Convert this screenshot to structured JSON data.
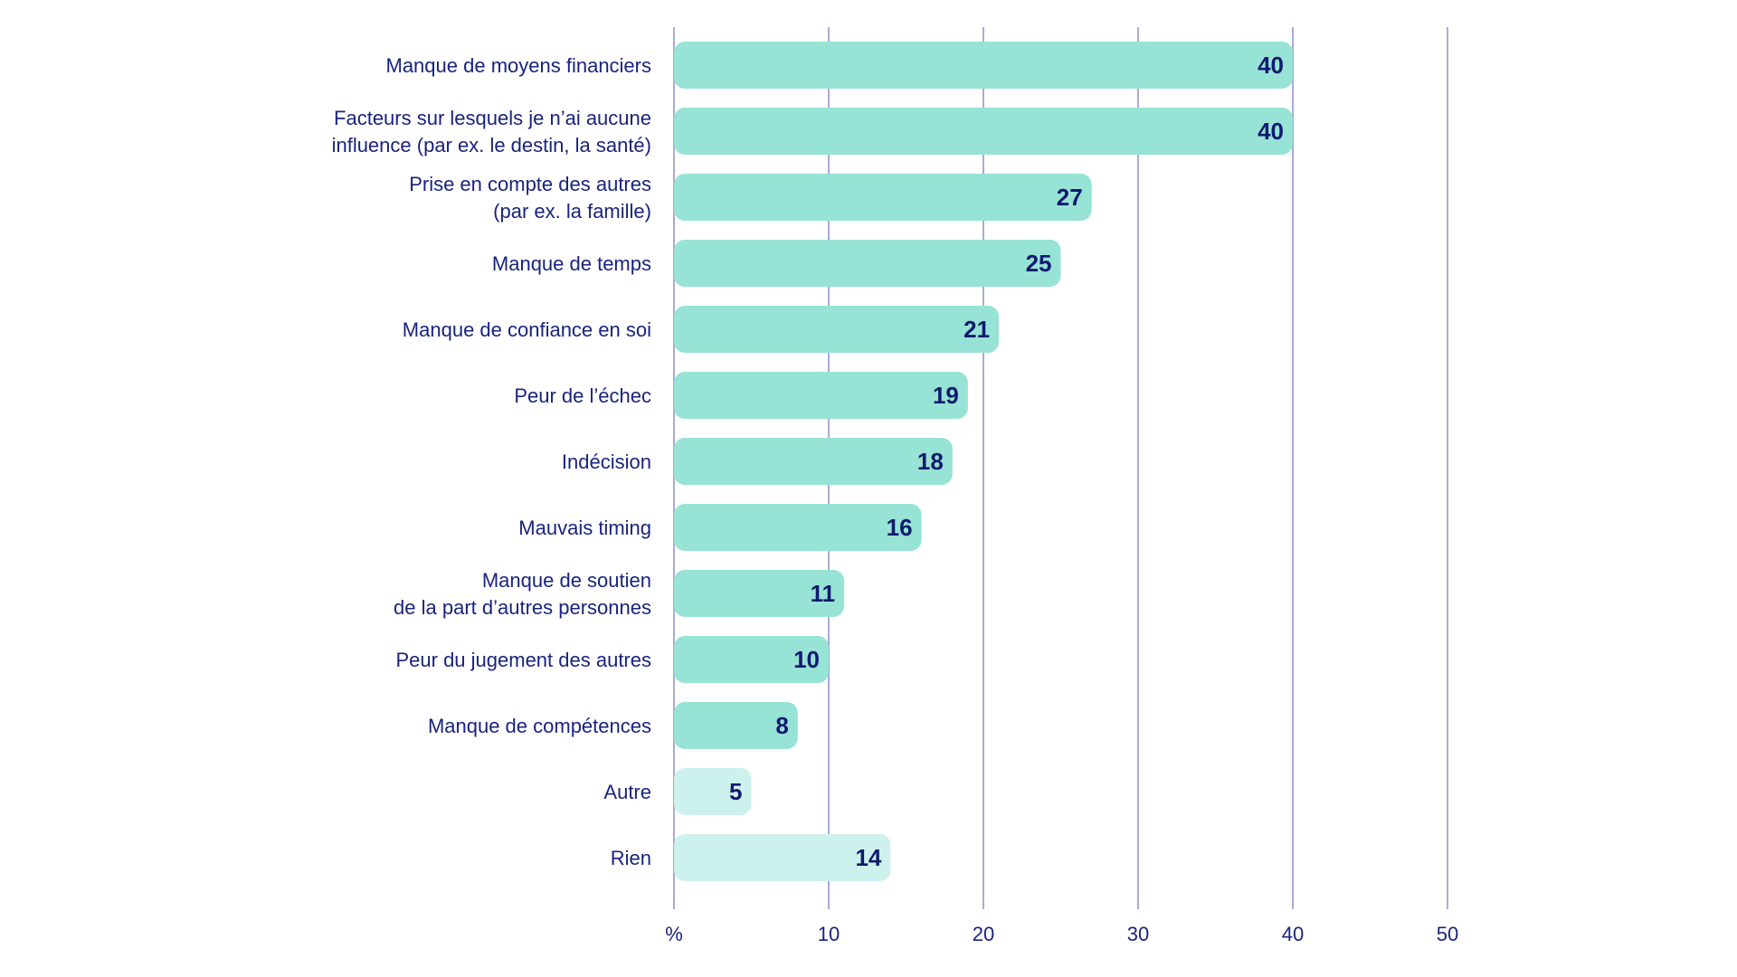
{
  "chart_data": {
    "type": "bar",
    "orientation": "horizontal",
    "categories": [
      [
        "Manque de moyens financiers"
      ],
      [
        "Facteurs sur lesquels je n’ai aucune",
        "influence (par ex. le destin, la santé)"
      ],
      [
        "Prise en compte des autres",
        "(par ex. la famille)"
      ],
      [
        "Manque de temps"
      ],
      [
        "Manque de confiance en soi"
      ],
      [
        "Peur de l’échec"
      ],
      [
        "Indécision"
      ],
      [
        "Mauvais timing"
      ],
      [
        "Manque de soutien",
        "de la part d’autres personnes"
      ],
      [
        "Peur du jugement des autres"
      ],
      [
        "Manque de compétences"
      ],
      [
        "Autre"
      ],
      [
        "Rien"
      ]
    ],
    "values": [
      40,
      40,
      27,
      25,
      21,
      19,
      18,
      16,
      11,
      10,
      8,
      5,
      14
    ],
    "highlight": [
      false,
      false,
      false,
      false,
      false,
      false,
      false,
      false,
      false,
      false,
      false,
      true,
      true
    ],
    "xlim": [
      0,
      50
    ],
    "xticks": [
      0,
      10,
      20,
      30,
      40,
      50
    ],
    "xtick_labels": [
      "%",
      "10",
      "20",
      "30",
      "40",
      "50"
    ],
    "grid": true,
    "colors": {
      "bar": "#97e3d5",
      "bar_light": "#cdf1ec",
      "grid": "#a9acd1",
      "text": "#1a237e",
      "value_text": "#0f1a6e"
    }
  }
}
